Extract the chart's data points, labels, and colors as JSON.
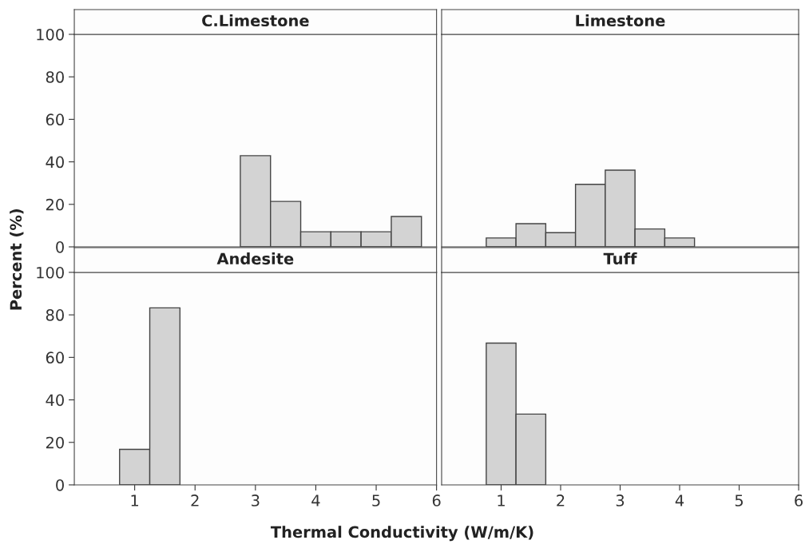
{
  "chart_data": [
    {
      "type": "histogram",
      "title": "C.Limestone",
      "ylabel": "Percent (%)",
      "xlabel": "Thermal Conductivity (W/m/K)",
      "bins": [
        2.75,
        3.25,
        3.75,
        4.25,
        4.75,
        5.25,
        5.75
      ],
      "values": [
        42.9,
        21.4,
        7.1,
        7.1,
        7.1,
        14.3
      ],
      "color": "#d3d3d3",
      "xlim": [
        0,
        6
      ],
      "xticks": [
        1,
        2,
        3,
        4,
        5,
        6
      ],
      "ylim": [
        0,
        100
      ],
      "yticks": [
        0,
        20,
        40,
        60,
        80,
        100
      ],
      "tick_labels": "y",
      "grid": false,
      "legend": false
    },
    {
      "type": "histogram",
      "title": "Limestone",
      "bins": [
        0.75,
        1.25,
        1.75,
        2.25,
        2.75,
        3.25,
        3.75,
        4.25
      ],
      "values": [
        4.2,
        10.9,
        6.7,
        29.4,
        36.1,
        8.4,
        4.2
      ],
      "color": "#d3d3d3",
      "xlim": [
        0,
        6
      ],
      "xticks": [
        1,
        2,
        3,
        4,
        5,
        6
      ],
      "ylim": [
        0,
        100
      ],
      "yticks": [
        0,
        20,
        40,
        60,
        80,
        100
      ],
      "tick_labels": false,
      "grid": false,
      "legend": false
    },
    {
      "type": "histogram",
      "title": "Andesite",
      "bins": [
        0.75,
        1.25,
        1.75
      ],
      "values": [
        16.7,
        83.3
      ],
      "color": "#d3d3d3",
      "xlim": [
        0,
        6
      ],
      "xticks": [
        1,
        2,
        3,
        4,
        5,
        6
      ],
      "ylim": [
        0,
        100
      ],
      "yticks": [
        0,
        20,
        40,
        60,
        80,
        100
      ],
      "grid": false,
      "legend": false
    },
    {
      "type": "histogram",
      "title": "Tuff",
      "bins": [
        0.75,
        1.25,
        1.75
      ],
      "values": [
        66.7,
        33.3
      ],
      "color": "#d3d3d3",
      "xlim": [
        0,
        6
      ],
      "xticks": [
        1,
        2,
        3,
        4,
        5,
        6
      ],
      "ylim": [
        0,
        100
      ],
      "yticks": [
        0,
        20,
        40,
        60,
        80,
        100
      ],
      "tick_labels": "x",
      "grid": false,
      "legend": false
    }
  ]
}
